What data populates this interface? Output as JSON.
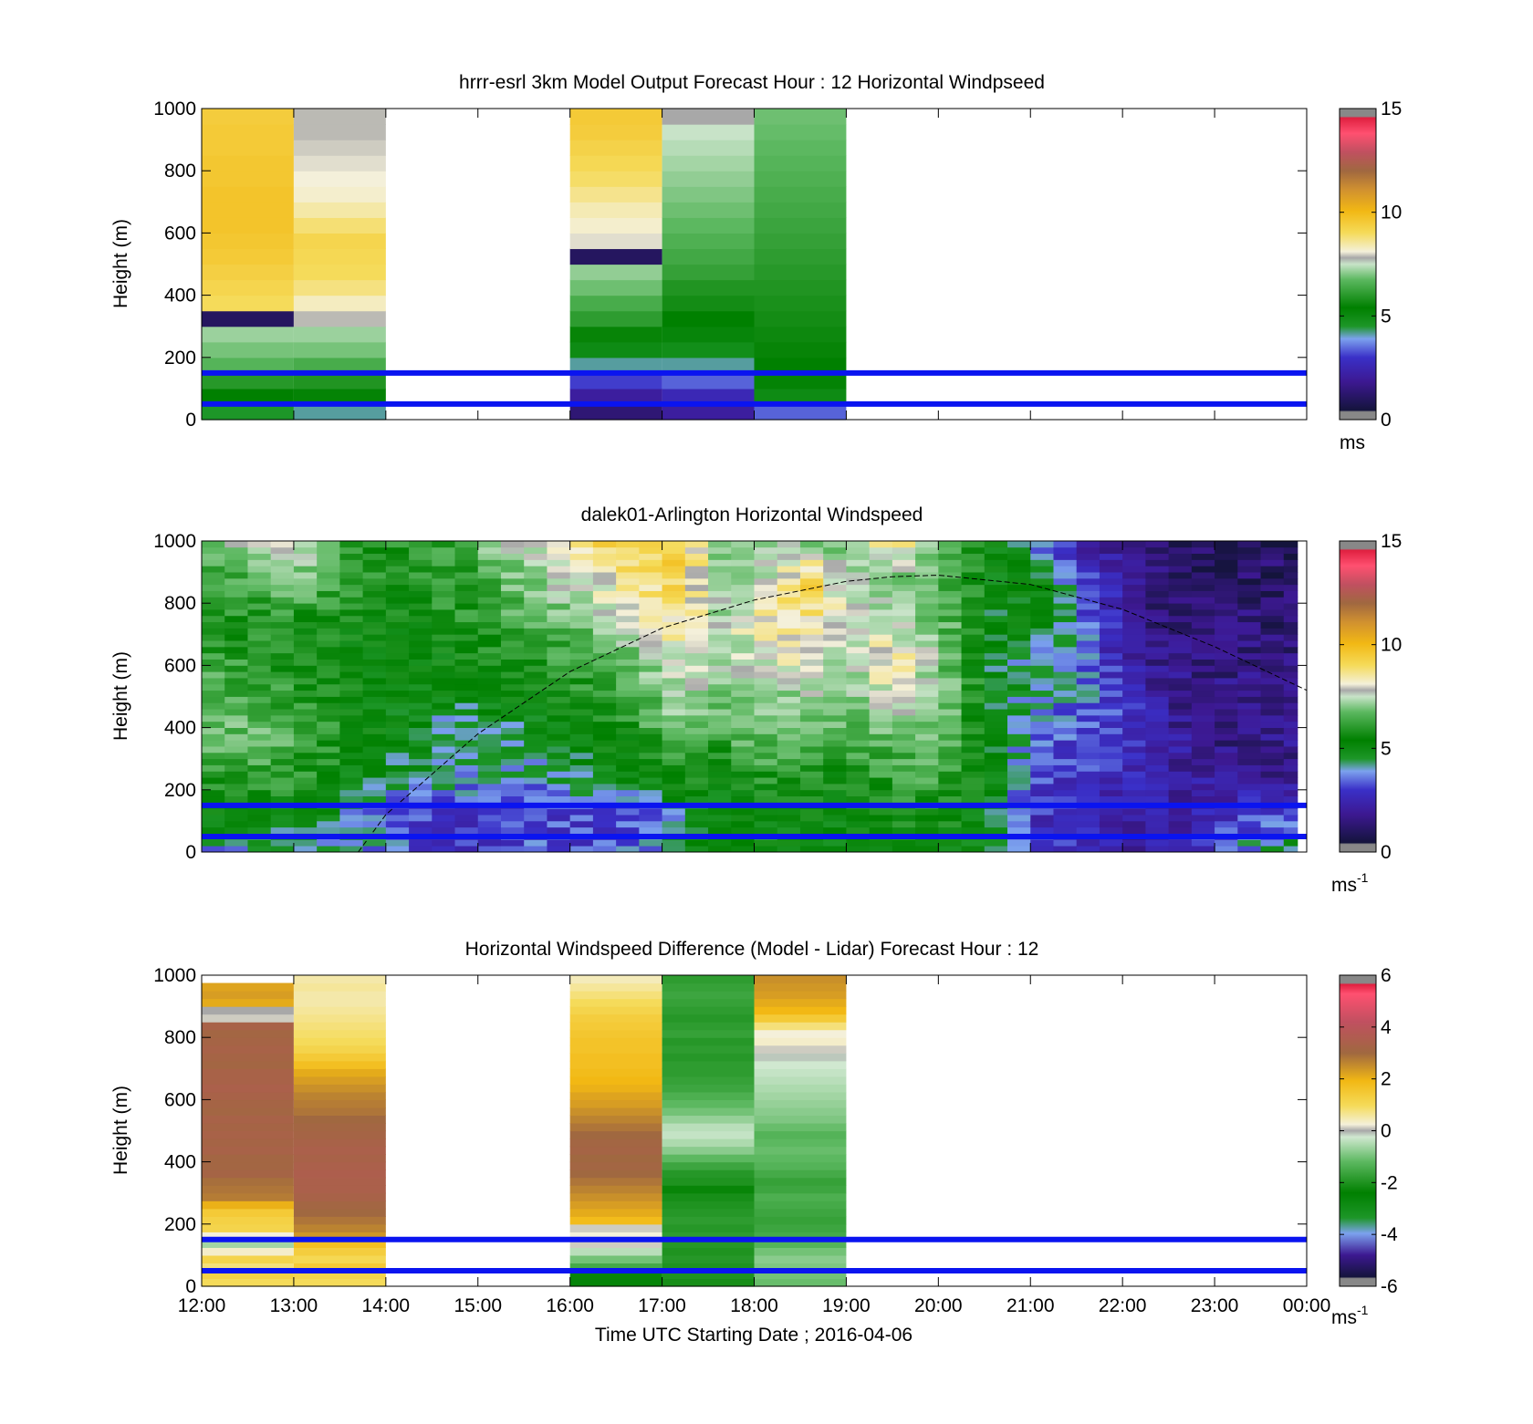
{
  "chart_data": [
    {
      "type": "heatmap",
      "title": "hrrr-esrl 3km Model Output   Forecast Hour : 12 Horizontal Windpseed",
      "ylabel": "Height (m)",
      "ylim": [
        0,
        1000
      ],
      "yticks": [
        "0",
        "200",
        "400",
        "600",
        "800",
        "1000"
      ],
      "colorbar": {
        "range": [
          0,
          15
        ],
        "ticks": [
          "0",
          "5",
          "10",
          "15"
        ],
        "unit": "ms",
        "unit_sup": "",
        "scale": "wind"
      },
      "reference_heights": [
        50,
        150
      ],
      "columns": [
        {
          "hour_offset": 0,
          "height_step": 50,
          "values": [
            3.8,
            4.6,
            5.2,
            5.9,
            6.3,
            6.7,
            0.5,
            8.8,
            9.0,
            9.2,
            9.4,
            9.5,
            9.6,
            9.6,
            9.6,
            9.5,
            9.5,
            9.4,
            9.4,
            9.3
          ]
        },
        {
          "hour_offset": 1,
          "height_step": 50,
          "values": [
            3.5,
            4.5,
            5.1,
            5.7,
            6.3,
            6.7,
            7.5,
            8.0,
            8.5,
            8.8,
            8.9,
            9.0,
            8.6,
            8.2,
            7.9,
            7.8,
            7.7,
            7.6,
            7.5,
            7.5
          ]
        },
        {
          "hour_offset": 4,
          "height_step": 50,
          "values": [
            0.8,
            1.5,
            2.5,
            3.5,
            4.2,
            4.7,
            5.3,
            5.7,
            6.2,
            6.6,
            0.5,
            7.7,
            7.9,
            8.1,
            8.4,
            8.7,
            8.9,
            9.1,
            9.3,
            9.4
          ]
        },
        {
          "hour_offset": 5,
          "height_step": 50,
          "values": [
            1.5,
            2.0,
            2.8,
            3.5,
            4.1,
            4.4,
            4.6,
            4.9,
            5.1,
            5.4,
            5.6,
            5.8,
            6.0,
            6.2,
            6.4,
            6.6,
            6.8,
            7.0,
            7.2,
            7.4
          ]
        },
        {
          "hour_offset": 6,
          "height_step": 50,
          "values": [
            2.8,
            4.2,
            4.5,
            4.6,
            4.7,
            4.8,
            4.9,
            5.0,
            5.1,
            5.2,
            5.3,
            5.4,
            5.5,
            5.6,
            5.7,
            5.8,
            5.9,
            6.0,
            6.1,
            6.2
          ]
        }
      ]
    },
    {
      "type": "heatmap",
      "title": "dalek01-Arlington  Horizontal Windspeed",
      "ylabel": "Height (m)",
      "ylim": [
        0,
        1000
      ],
      "yticks": [
        "0",
        "200",
        "400",
        "600",
        "800",
        "1000"
      ],
      "colorbar": {
        "range": [
          0,
          15
        ],
        "ticks": [
          "0",
          "5",
          "10",
          "15"
        ],
        "unit": "ms",
        "unit_sup": "-1",
        "scale": "wind"
      },
      "reference_heights": [
        50,
        150
      ],
      "hour_end": 11.9,
      "column_hours": 0.25,
      "boundary_layer_curve": {
        "hours": [
          1.7,
          2.0,
          3.0,
          4.0,
          5.0,
          6.0,
          7.0,
          7.5,
          8.0,
          9.0,
          10.0,
          11.0,
          12.0
        ],
        "heights": [
          0,
          120,
          380,
          580,
          720,
          810,
          870,
          885,
          890,
          860,
          780,
          660,
          520
        ]
      },
      "profiles": [
        {
          "hour": 0.0,
          "values": [
            3.2,
            4.3,
            5.5,
            6.4,
            6.0,
            5.6,
            5.2,
            5.0,
            6.5
          ]
        },
        {
          "hour": 1.0,
          "values": [
            3.6,
            4.6,
            5.3,
            5.8,
            5.2,
            5.0,
            5.0,
            6.6,
            7.5
          ]
        },
        {
          "hour": 1.6,
          "values": [
            3.3,
            3.6,
            4.4,
            4.8,
            4.6,
            4.6,
            4.9,
            5.2,
            5.4
          ]
        },
        {
          "hour": 2.2,
          "values": [
            2.8,
            2.5,
            3.8,
            4.3,
            4.3,
            4.4,
            4.7,
            4.9,
            5.1
          ]
        },
        {
          "hour": 2.8,
          "values": [
            2.3,
            2.1,
            3.5,
            3.0,
            4.3,
            4.6,
            5.1,
            5.3,
            5.6
          ]
        },
        {
          "hour": 3.5,
          "values": [
            2.7,
            2.6,
            3.3,
            3.9,
            4.5,
            5.1,
            5.8,
            6.4,
            7.3
          ]
        },
        {
          "hour": 4.2,
          "values": [
            2.5,
            2.5,
            3.9,
            4.4,
            5.0,
            5.6,
            6.4,
            7.6,
            8.8
          ]
        },
        {
          "hour": 4.8,
          "values": [
            2.9,
            2.4,
            4.4,
            5.2,
            5.8,
            6.5,
            7.7,
            8.5,
            9.3
          ]
        },
        {
          "hour": 5.2,
          "values": [
            3.8,
            3.9,
            5.3,
            6.4,
            7.0,
            7.6,
            8.5,
            9.0,
            9.4
          ]
        },
        {
          "hour": 5.6,
          "values": [
            4.0,
            4.1,
            4.8,
            5.6,
            6.3,
            7.0,
            6.8,
            6.7,
            6.8
          ]
        },
        {
          "hour": 6.2,
          "values": [
            4.3,
            4.5,
            5.3,
            6.3,
            6.5,
            7.3,
            8.4,
            7.4,
            6.6
          ]
        },
        {
          "hour": 6.6,
          "values": [
            4.2,
            4.6,
            5.2,
            5.9,
            6.9,
            8.0,
            8.4,
            9.2,
            6.5
          ]
        },
        {
          "hour": 7.0,
          "values": [
            4.4,
            4.5,
            4.7,
            5.9,
            6.2,
            6.7,
            7.1,
            6.9,
            6.2
          ]
        },
        {
          "hour": 7.5,
          "values": [
            4.3,
            4.9,
            5.5,
            6.0,
            7.5,
            8.5,
            6.8,
            6.5,
            8.8
          ]
        },
        {
          "hour": 8.0,
          "values": [
            4.3,
            5.0,
            5.6,
            6.2,
            6.6,
            6.6,
            6.3,
            6.0,
            5.8
          ]
        },
        {
          "hour": 8.6,
          "values": [
            4.2,
            4.0,
            4.4,
            4.1,
            4.1,
            3.9,
            4.0,
            4.5,
            4.4
          ]
        },
        {
          "hour": 9.1,
          "values": [
            2.5,
            2.2,
            2.4,
            2.9,
            3.3,
            3.5,
            4.6,
            4.4,
            3.0
          ]
        },
        {
          "hour": 9.5,
          "values": [
            2.1,
            2.0,
            2.3,
            2.7,
            3.2,
            3.5,
            3.1,
            2.7,
            1.7
          ]
        },
        {
          "hour": 10.0,
          "values": [
            1.8,
            1.9,
            2.1,
            2.6,
            2.2,
            1.8,
            1.6,
            1.4,
            1.2
          ]
        },
        {
          "hour": 10.5,
          "values": [
            1.4,
            1.3,
            1.6,
            1.5,
            1.2,
            1.0,
            0.8,
            0.7,
            0.6
          ]
        },
        {
          "hour": 11.3,
          "values": [
            3.2,
            2.5,
            1.1,
            0.9,
            1.0,
            1.1,
            0.8,
            0.6,
            0.5
          ]
        },
        {
          "hour": 11.9,
          "values": [
            4.1,
            2.4,
            1.0,
            1.4,
            0.9,
            0.8,
            0.7,
            0.6,
            0.5
          ]
        }
      ]
    },
    {
      "type": "heatmap",
      "title": "Horizontal Windspeed Difference (Model - Lidar) Forecast Hour : 12",
      "ylabel": "Height (m)",
      "xlabel": "Time UTC  Starting Date ; 2016-04-06",
      "ylim": [
        0,
        1000
      ],
      "yticks": [
        "0",
        "200",
        "400",
        "600",
        "800",
        "1000"
      ],
      "xticks": [
        "12:00",
        "13:00",
        "14:00",
        "15:00",
        "16:00",
        "17:00",
        "18:00",
        "19:00",
        "20:00",
        "21:00",
        "22:00",
        "23:00",
        "00:00"
      ],
      "colorbar": {
        "range": [
          -6,
          6
        ],
        "ticks": [
          "-6",
          "-4",
          "-2",
          "0",
          "2",
          "4",
          "6"
        ],
        "unit": "ms",
        "unit_sup": "-1",
        "scale": "diff"
      },
      "reference_heights": [
        50,
        150
      ],
      "columns": [
        {
          "hour_offset": 0,
          "height_step": 25,
          "top": 975,
          "values": [
            1.0,
            1.3,
            0.8,
            1.2,
            0.3,
            -0.6,
            0.2,
            1.2,
            1.3,
            1.5,
            2.1,
            2.9,
            3.0,
            3.1,
            3.4,
            3.3,
            3.3,
            3.5,
            3.4,
            3.5,
            3.4,
            3.5,
            3.3,
            3.4,
            3.5,
            3.6,
            3.5,
            3.5,
            3.3,
            3.4,
            3.5,
            3.4,
            3.3,
            3.5,
            0.1,
            0.0,
            2.2,
            2.4,
            2.3
          ]
        },
        {
          "hour_offset": 1,
          "height_step": 25,
          "top": 1000,
          "values": [
            1.0,
            1.2,
            1.5,
            1.1,
            1.4,
            1.8,
            2.5,
            2.8,
            3.0,
            3.2,
            3.3,
            3.5,
            3.6,
            3.6,
            3.7,
            3.6,
            3.5,
            3.6,
            3.5,
            3.4,
            3.3,
            3.2,
            3.0,
            2.9,
            2.8,
            2.6,
            2.4,
            2.2,
            1.8,
            1.5,
            1.2,
            1.0,
            0.9,
            0.8,
            0.7,
            0.6,
            0.5,
            0.5,
            0.6,
            0.5
          ]
        },
        {
          "hour_offset": 4,
          "height_step": 25,
          "top": 1000,
          "values": [
            -2.6,
            -2.3,
            -1.5,
            -1.0,
            -0.4,
            0.1,
            0.2,
            0.1,
            1.9,
            2.2,
            2.4,
            2.6,
            2.8,
            3.0,
            3.2,
            3.3,
            3.2,
            3.4,
            3.3,
            3.2,
            3.0,
            2.8,
            2.6,
            2.4,
            2.3,
            2.1,
            2.0,
            1.9,
            1.8,
            1.8,
            1.7,
            1.7,
            1.6,
            1.5,
            1.4,
            1.2,
            1.0,
            0.8,
            0.6,
            0.4
          ]
        },
        {
          "hour_offset": 5,
          "height_step": 25,
          "top": 1000,
          "values": [
            -2.1,
            -2.0,
            -2.0,
            -1.9,
            -2.0,
            -1.9,
            -1.8,
            -1.9,
            -1.8,
            -1.9,
            -2.0,
            -2.1,
            -2.3,
            -2.0,
            -1.9,
            -1.6,
            -1.2,
            -0.8,
            -0.5,
            -0.3,
            -0.4,
            -0.7,
            -1.0,
            -1.2,
            -1.4,
            -1.6,
            -1.7,
            -1.8,
            -1.8,
            -1.9,
            -1.8,
            -1.9,
            -1.7,
            -1.8,
            -1.9,
            -1.8,
            -1.7,
            -1.6,
            -1.7,
            -1.8
          ]
        },
        {
          "hour_offset": 6,
          "height_step": 25,
          "top": 1000,
          "values": [
            -1.1,
            -1.0,
            -0.9,
            -0.8,
            -1.0,
            -1.3,
            -1.5,
            -1.6,
            -1.7,
            -1.6,
            -1.5,
            -1.4,
            -1.6,
            -1.7,
            -1.5,
            -1.3,
            -1.2,
            -1.1,
            -1.2,
            -1.3,
            -1.1,
            -0.9,
            -0.8,
            -0.7,
            -0.6,
            -0.5,
            -0.4,
            -0.3,
            -0.2,
            -0.1,
            0.1,
            0.3,
            0.2,
            0.8,
            1.5,
            2.0,
            2.2,
            2.4,
            2.5,
            2.6
          ]
        }
      ]
    }
  ]
}
